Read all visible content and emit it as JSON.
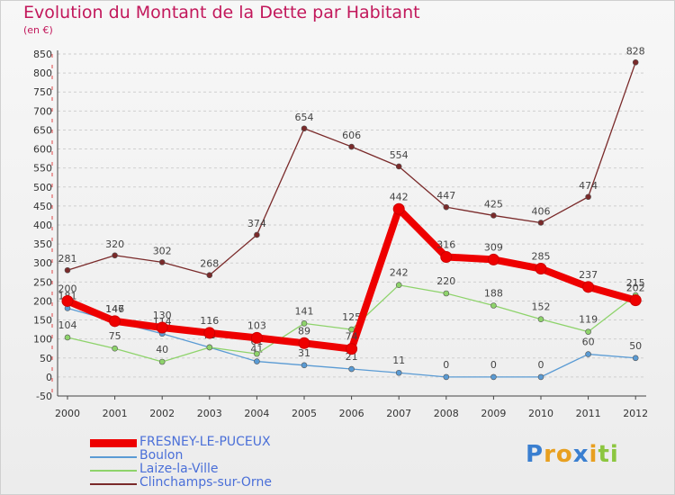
{
  "chart_data": {
    "type": "line",
    "title": "Evolution du Montant de la Dette par Habitant",
    "unit": "(en €)",
    "categories": [
      "2000",
      "2001",
      "2002",
      "2003",
      "2004",
      "2005",
      "2006",
      "2007",
      "2008",
      "2009",
      "2010",
      "2011",
      "2012"
    ],
    "yticks": [
      -50,
      0,
      50,
      100,
      150,
      200,
      250,
      300,
      350,
      400,
      450,
      500,
      550,
      600,
      650,
      700,
      750,
      800,
      850
    ],
    "ylim": [
      -50,
      850
    ],
    "series": [
      {
        "name": "Clinchamps-sur-Orne",
        "color": "#7a2a2a",
        "values": [
          281,
          320,
          302,
          268,
          374,
          654,
          606,
          554,
          447,
          425,
          406,
          474,
          828
        ]
      },
      {
        "name": "Boulon",
        "color": "#5a9bd4",
        "values": [
          181,
          146,
          114,
          78,
          41,
          31,
          21,
          11,
          0,
          0,
          0,
          60,
          50
        ]
      },
      {
        "name": "Laize-la-Ville",
        "color": "#8ed36b",
        "values": [
          104,
          75,
          40,
          78,
          61,
          141,
          125,
          242,
          220,
          188,
          152,
          119,
          215
        ]
      },
      {
        "name": "FRESNEY-LE-PUCEUX",
        "color": "#ee0000",
        "values": [
          200,
          147,
          130,
          116,
          103,
          89,
          74,
          442,
          316,
          309,
          285,
          237,
          202
        ]
      }
    ],
    "legend_order": [
      "FRESNEY-LE-PUCEUX",
      "Boulon",
      "Laize-la-Ville",
      "Clinchamps-sur-Orne"
    ],
    "legend_placement": "bottom-left"
  },
  "logo": {
    "letters": [
      {
        "char": "P",
        "color": "#3a7fd0"
      },
      {
        "char": "r",
        "color": "#e8a020"
      },
      {
        "char": "o",
        "color": "#e8a020"
      },
      {
        "char": "x",
        "color": "#3a7fd0"
      },
      {
        "char": "i",
        "color": "#e8a020"
      },
      {
        "char": "t",
        "color": "#8cc63f"
      },
      {
        "char": "i",
        "color": "#8cc63f"
      }
    ]
  }
}
